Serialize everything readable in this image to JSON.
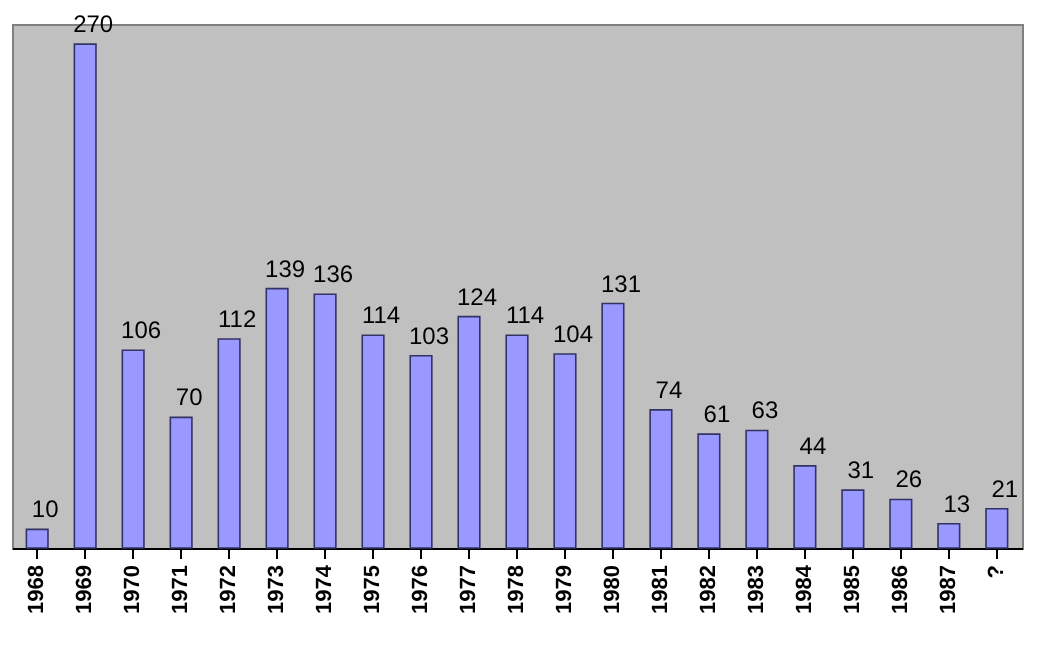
{
  "chart_data": {
    "type": "bar",
    "categories": [
      "1968",
      "1969",
      "1970",
      "1971",
      "1972",
      "1973",
      "1974",
      "1975",
      "1976",
      "1977",
      "1978",
      "1979",
      "1980",
      "1981",
      "1982",
      "1983",
      "1984",
      "1985",
      "1986",
      "1987",
      "?"
    ],
    "values": [
      10,
      270,
      106,
      70,
      112,
      139,
      136,
      114,
      103,
      124,
      114,
      104,
      131,
      74,
      61,
      63,
      44,
      31,
      26,
      13,
      21
    ],
    "color": "#9999ff",
    "data_labels": true
  }
}
